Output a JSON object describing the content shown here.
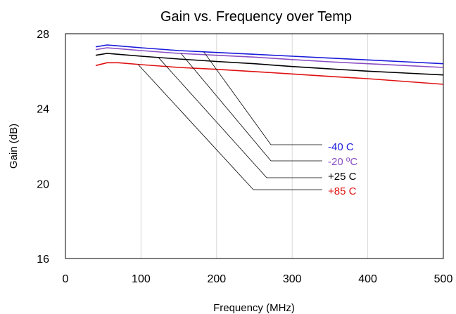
{
  "chart_data": {
    "type": "line",
    "title": "Gain vs. Frequency over Temp",
    "xlabel": "Frequency (MHz)",
    "ylabel": "Gain (dB)",
    "xlim": [
      0,
      500
    ],
    "ylim": [
      16,
      28
    ],
    "xticks": [
      "0",
      "100",
      "200",
      "300",
      "400",
      "500"
    ],
    "yticks": [
      "16",
      "20",
      "24",
      "28"
    ],
    "grid": "vertical",
    "legend": "callouts at center-right",
    "series": [
      {
        "name": "-40 C",
        "color": "#1a1adb",
        "x": [
          40,
          55,
          70,
          100,
          150,
          200,
          250,
          300,
          350,
          400,
          450,
          500
        ],
        "y": [
          27.3,
          27.4,
          27.35,
          27.25,
          27.1,
          27.0,
          26.9,
          26.8,
          26.7,
          26.6,
          26.5,
          26.4
        ]
      },
      {
        "name": "-20 ºC",
        "color": "#8a4fc4",
        "x": [
          40,
          55,
          70,
          100,
          150,
          200,
          250,
          300,
          350,
          400,
          450,
          500
        ],
        "y": [
          27.15,
          27.25,
          27.2,
          27.1,
          26.95,
          26.85,
          26.75,
          26.62,
          26.5,
          26.4,
          26.3,
          26.2
        ]
      },
      {
        "name": "+25 C",
        "color": "#000000",
        "x": [
          40,
          55,
          70,
          100,
          150,
          200,
          250,
          300,
          350,
          400,
          450,
          500
        ],
        "y": [
          26.85,
          26.95,
          26.9,
          26.8,
          26.65,
          26.52,
          26.4,
          26.25,
          26.12,
          26.0,
          25.9,
          25.8
        ]
      },
      {
        "name": "+85 C",
        "color": "#e01010",
        "x": [
          40,
          55,
          70,
          100,
          150,
          200,
          250,
          300,
          350,
          400,
          450,
          500
        ],
        "y": [
          26.3,
          26.45,
          26.45,
          26.35,
          26.2,
          26.1,
          25.98,
          25.85,
          25.72,
          25.6,
          25.45,
          25.3
        ]
      }
    ]
  }
}
